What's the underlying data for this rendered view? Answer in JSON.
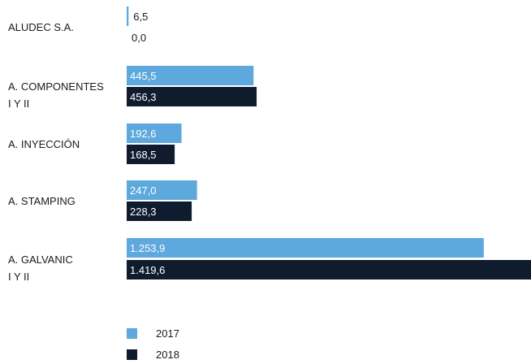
{
  "chart_data": {
    "type": "bar",
    "orientation": "horizontal",
    "categories": [
      "ALUDEC S.A.",
      "A. COMPONENTES\nI Y II",
      "A. INYECCIÓN",
      "A. STAMPING",
      "A. GALVANIC\nI Y II"
    ],
    "series": [
      {
        "name": "2017",
        "color": "#5da8dc",
        "values": [
          6.5,
          445.5,
          192.6,
          247.0,
          1253.9
        ],
        "labels": [
          "6,5",
          "445,5",
          "192,6",
          "247,0",
          "1.253,9"
        ]
      },
      {
        "name": "2018",
        "color": "#0f1c2e",
        "values": [
          0.0,
          456.3,
          168.5,
          228.3,
          1419.6
        ],
        "labels": [
          "0,0",
          "456,3",
          "168,5",
          "228,3",
          "1.419,6"
        ]
      }
    ],
    "legend_position": "bottom-left",
    "grid": false
  }
}
